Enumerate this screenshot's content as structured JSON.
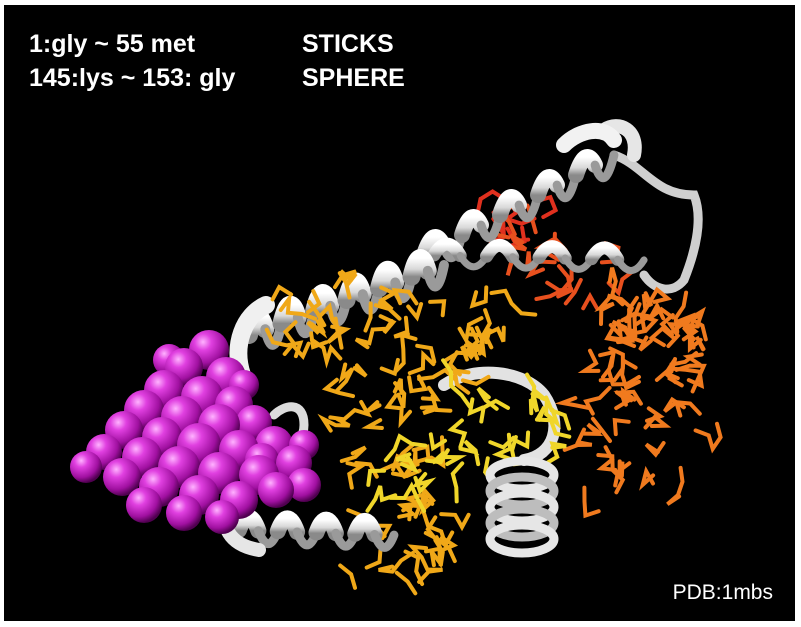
{
  "annotations": {
    "range_1": "1:gly ~ 55 met",
    "style_1": "STICKS",
    "range_2": "145:lys ~ 153: gly",
    "style_2": "SPHERE"
  },
  "pdb_label": "PDB:1mbs",
  "colors": {
    "background": "#000000",
    "ribbon": "#e8e8e8",
    "spheres": "#d41ad4",
    "sticks_red": "#e0301e",
    "sticks_orange": "#f07a1e",
    "sticks_amber": "#f0a818",
    "sticks_yellow": "#f0d62a"
  }
}
